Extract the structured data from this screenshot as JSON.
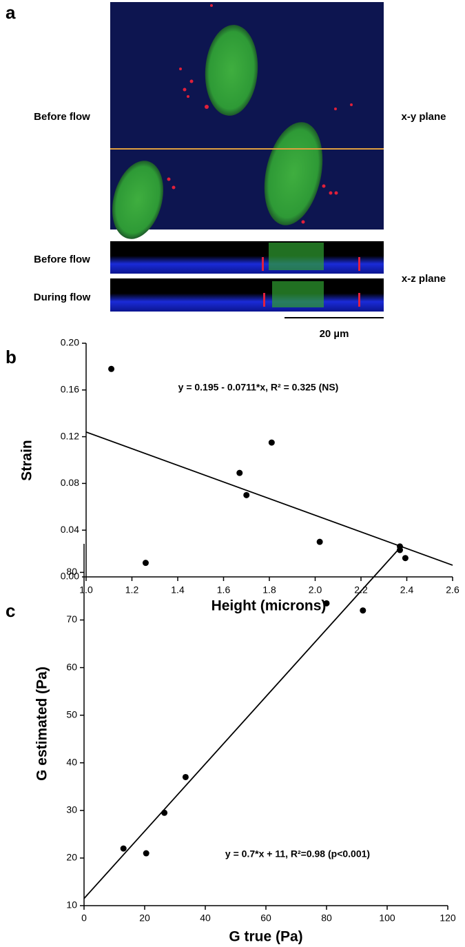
{
  "panel_a": {
    "label": "a",
    "row_labels": [
      "Before flow",
      "Before flow",
      "During flow"
    ],
    "plane_labels": [
      "x-y plane",
      "x-z plane"
    ],
    "scale_bar": "20 µm"
  },
  "chart_data": [
    {
      "type": "scatter",
      "panel": "b",
      "annotation": "y = 0.195 - 0.0711*x, R² = 0.325 (NS)",
      "xlabel": "Height (microns)",
      "ylabel": "Strain",
      "x": [
        1.11,
        1.26,
        1.67,
        1.7,
        1.81,
        2.02,
        2.37,
        2.37
      ],
      "values": [
        0.178,
        0.012,
        0.089,
        0.07,
        0.115,
        0.03,
        0.026,
        0.023
      ],
      "color": "#000000",
      "fit_line": {
        "x": [
          1.0,
          2.6
        ],
        "y": [
          0.124,
          0.01
        ]
      },
      "xlim": [
        1.0,
        2.6
      ],
      "ylim": [
        0,
        0.2
      ],
      "xticks": [
        {
          "value": 1,
          "label": "1.0"
        },
        {
          "value": 1.2,
          "label": "1.2"
        },
        {
          "value": 1.4,
          "label": "1.4"
        },
        {
          "value": 1.6,
          "label": "1.6"
        },
        {
          "value": 1.8,
          "label": "1.8"
        },
        {
          "value": 2,
          "label": "2.0"
        },
        {
          "value": 2.2,
          "label": "2.2"
        },
        {
          "value": 2.4,
          "label": "2.4"
        },
        {
          "value": 2.6,
          "label": "2.6"
        }
      ],
      "yticks": [
        {
          "value": 0,
          "label": "0.00"
        },
        {
          "value": 0.04,
          "label": "0.04"
        },
        {
          "value": 0.08,
          "label": "0.08"
        },
        {
          "value": 0.12,
          "label": "0.12"
        },
        {
          "value": 0.16,
          "label": "0.16"
        },
        {
          "value": 0.2,
          "label": "0.20"
        }
      ]
    },
    {
      "type": "scatter",
      "panel": "c",
      "annotation": "y = 0.7*x + 11, R²=0.98 (p<0.001)",
      "xlabel": "G true (Pa)",
      "ylabel": "G estimated (Pa)",
      "x": [
        13,
        20.5,
        26.5,
        33.5,
        80,
        92,
        106
      ],
      "values": [
        22,
        21,
        29.5,
        37,
        73.5,
        72,
        83
      ],
      "color": "#000000",
      "fit_line": {
        "x": [
          0,
          104
        ],
        "y": [
          11.5,
          85
        ]
      },
      "xlim": [
        0,
        120
      ],
      "ylim": [
        10,
        86
      ],
      "xticks": [
        0,
        20,
        40,
        60,
        80,
        100,
        120
      ],
      "yticks": [
        10,
        20,
        30,
        40,
        50,
        60,
        70,
        80
      ]
    }
  ]
}
